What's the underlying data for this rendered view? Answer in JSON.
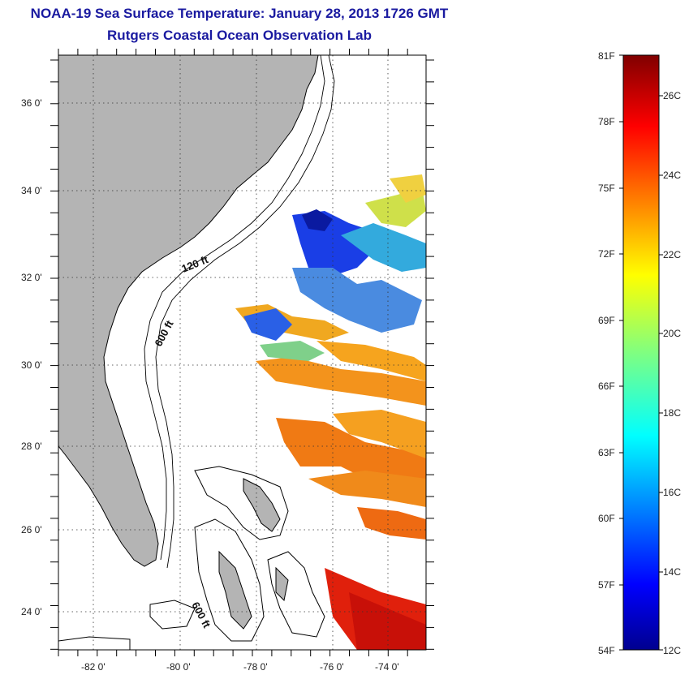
{
  "title": "NOAA-19 Sea Surface Temperature:  January 28, 2013 1726 GMT",
  "subtitle": "Rutgers Coastal Ocean Observation Lab",
  "map": {
    "lat_labels": [
      "36 0'",
      "34 0'",
      "32 0'",
      "30 0'",
      "28 0'",
      "26 0'",
      "24 0'"
    ],
    "lon_labels": [
      "-82 0'",
      "-80 0'",
      "-78 0'",
      "-76 0'",
      "-74 0'"
    ],
    "isobath_labels": [
      "120 ft",
      "600 ft",
      "600 ft"
    ],
    "colors": {
      "land": "#b4b4b4",
      "water": "#ffffff",
      "frame": "#000000"
    }
  },
  "colorbar": {
    "f_labels": [
      "81F",
      "78F",
      "75F",
      "72F",
      "69F",
      "66F",
      "63F",
      "60F",
      "57F",
      "54F"
    ],
    "c_labels": [
      "26C",
      "24C",
      "22C",
      "20C",
      "18C",
      "16C",
      "14C",
      "12C"
    ],
    "f_range": [
      54,
      81
    ],
    "c_range": [
      12,
      27
    ],
    "colormap": "jet"
  }
}
